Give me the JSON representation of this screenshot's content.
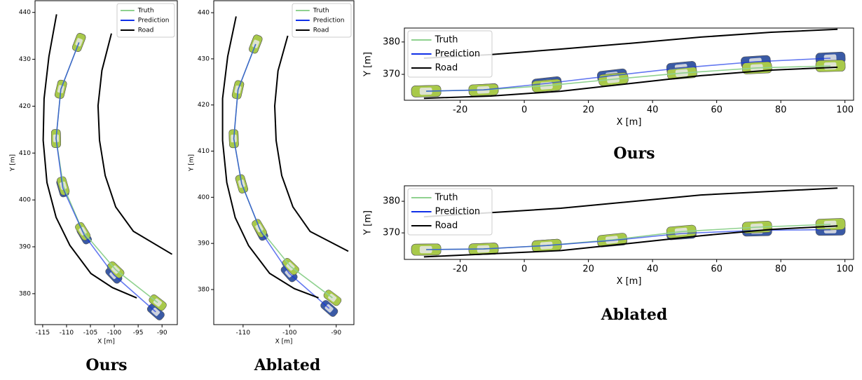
{
  "chart_data": [
    {
      "type": "line",
      "caption": "Ours",
      "xlabel": "X [m]",
      "ylabel": "Y [m]",
      "xlim": [
        -116.6,
        -86.8
      ],
      "ylim": [
        373.4,
        442.5
      ],
      "xticks": [
        -115,
        -110,
        -105,
        -100,
        -95,
        -90
      ],
      "yticks": [
        380,
        390,
        400,
        410,
        420,
        430,
        440
      ],
      "legend": "upper right",
      "series": [
        {
          "name": "Truth",
          "color": "#8fd18f",
          "marker_color": "#a8c94a",
          "x": [
            -107.4,
            -111.2,
            -112.2,
            -110.7,
            -106.6,
            -99.7,
            -90.9
          ],
          "y": [
            433.6,
            423.6,
            413.1,
            403.0,
            393.3,
            385.1,
            378.1
          ]
        },
        {
          "name": "Prediction",
          "color": "#1030e8",
          "marker_color": "#3a5aa5",
          "x": [
            -107.4,
            -111.2,
            -112.2,
            -110.8,
            -106.3,
            -100.1,
            -91.3
          ],
          "y": [
            433.6,
            423.6,
            413.1,
            402.6,
            392.5,
            384.0,
            376.1
          ]
        },
        {
          "name": "Road",
          "color": "#000000",
          "x": [
            -112.1,
            -113.7,
            -114.7,
            -114.9,
            -114.1,
            -112.2,
            -109.3,
            -104.9,
            -100.4,
            -95.3,
            null,
            -100.6,
            -102.6,
            -103.4,
            -103.1,
            -101.9,
            -99.7,
            -96.0,
            -87.9
          ],
          "y": [
            439.6,
            430.6,
            421.6,
            412.7,
            403.7,
            396.3,
            390.3,
            384.3,
            381.3,
            379.1,
            null,
            435.5,
            427.6,
            420.1,
            412.7,
            405.2,
            398.5,
            393.3,
            388.4
          ]
        }
      ]
    },
    {
      "type": "line",
      "caption": "Ablated",
      "xlabel": "X [m]",
      "ylabel": "Y [m]",
      "xlim": [
        -116.3,
        -86.2
      ],
      "ylim": [
        372.4,
        442.6
      ],
      "xticks": [
        -110,
        -100,
        -90
      ],
      "yticks": [
        380,
        390,
        400,
        410,
        420,
        430,
        440
      ],
      "legend": "upper right",
      "series": [
        {
          "name": "Truth",
          "color": "#8fd18f",
          "marker_color": "#a8c94a",
          "x": [
            -107.3,
            -111.1,
            -112.0,
            -110.3,
            -106.5,
            -99.8,
            -90.8
          ],
          "y": [
            433.2,
            423.3,
            412.7,
            402.9,
            393.3,
            385.0,
            378.2
          ]
        },
        {
          "name": "Prediction",
          "color": "#1030e8",
          "marker_color": "#3a5aa5",
          "x": [
            -107.3,
            -111.1,
            -112.0,
            -110.3,
            -106.2,
            -100.1,
            -91.5
          ],
          "y": [
            433.2,
            423.3,
            412.7,
            402.9,
            392.6,
            383.5,
            375.9
          ]
        },
        {
          "name": "Road",
          "color": "#000000",
          "x": [
            -111.5,
            -113.3,
            -114.4,
            -114.4,
            -113.5,
            -111.7,
            -108.8,
            -104.3,
            -99.0,
            -93.8,
            null,
            -100.4,
            -102.5,
            -103.2,
            -102.9,
            -101.7,
            -99.3,
            -95.6,
            -87.4
          ],
          "y": [
            439.2,
            430.5,
            421.4,
            412.3,
            403.2,
            395.6,
            389.5,
            383.5,
            380.2,
            378.2,
            null,
            435.0,
            427.4,
            419.8,
            412.3,
            404.7,
            397.9,
            392.6,
            388.3
          ]
        }
      ]
    },
    {
      "type": "line",
      "caption": "Ours",
      "xlabel": "X [m]",
      "ylabel": "Y [m]",
      "xlim": [
        -37.4,
        102.7
      ],
      "ylim": [
        362.0,
        384.3
      ],
      "xticks": [
        -20,
        0,
        20,
        40,
        60,
        80,
        100
      ],
      "yticks": [
        370,
        380
      ],
      "legend": "upper left",
      "series": [
        {
          "name": "Truth",
          "color": "#8fd18f",
          "marker_color": "#a8c94a",
          "x": [
            -30.6,
            -12.7,
            7.0,
            27.8,
            49.2,
            72.6,
            95.5
          ],
          "y": [
            364.8,
            365.2,
            366.5,
            368.5,
            370.4,
            372.0,
            372.6
          ]
        },
        {
          "name": "Prediction",
          "color": "#1030e8",
          "marker_color": "#3a5aa5",
          "x": [
            -30.6,
            -12.7,
            7.0,
            27.4,
            49.0,
            72.2,
            95.5
          ],
          "y": [
            364.8,
            365.2,
            367.2,
            369.6,
            372.0,
            373.9,
            375.0
          ]
        },
        {
          "name": "Road",
          "color": "#000000",
          "x": [
            -31.3,
            -10.5,
            11.4,
            33.2,
            55.1,
            77.0,
            97.7,
            null,
            -31.3,
            -10.5,
            11.4,
            33.2,
            55.1,
            77.0,
            97.7
          ],
          "y": [
            375.0,
            376.1,
            377.8,
            379.6,
            381.5,
            383.0,
            383.9,
            null,
            362.6,
            363.3,
            364.8,
            367.2,
            369.6,
            371.3,
            372.2
          ]
        }
      ]
    },
    {
      "type": "line",
      "caption": "Ablated",
      "xlabel": "X [m]",
      "ylabel": "Y [m]",
      "xlim": [
        -37.4,
        102.7
      ],
      "ylim": [
        361.6,
        384.9
      ],
      "xticks": [
        -20,
        0,
        20,
        40,
        60,
        80,
        100
      ],
      "yticks": [
        370,
        380
      ],
      "legend": "upper left",
      "series": [
        {
          "name": "Truth",
          "color": "#8fd18f",
          "marker_color": "#a8c94a",
          "x": [
            -30.6,
            -12.7,
            7.0,
            27.4,
            49.0,
            72.6,
            95.5
          ],
          "y": [
            364.7,
            364.9,
            366.0,
            367.8,
            370.4,
            371.8,
            372.7
          ]
        },
        {
          "name": "Prediction",
          "color": "#1030e8",
          "marker_color": "#3a5aa5",
          "x": [
            -30.6,
            -12.7,
            7.0,
            27.4,
            49.0,
            72.6,
            95.5
          ],
          "y": [
            364.7,
            364.9,
            366.0,
            367.6,
            369.8,
            370.8,
            371.0
          ]
        },
        {
          "name": "Road",
          "color": "#000000",
          "x": [
            -31.3,
            11.4,
            55.1,
            97.7,
            null,
            -31.3,
            11.4,
            33.2,
            55.1,
            77.0,
            97.7
          ],
          "y": [
            375.1,
            377.8,
            382.0,
            384.2,
            null,
            362.4,
            364.4,
            366.7,
            369.1,
            371.1,
            372.2
          ]
        }
      ]
    }
  ]
}
